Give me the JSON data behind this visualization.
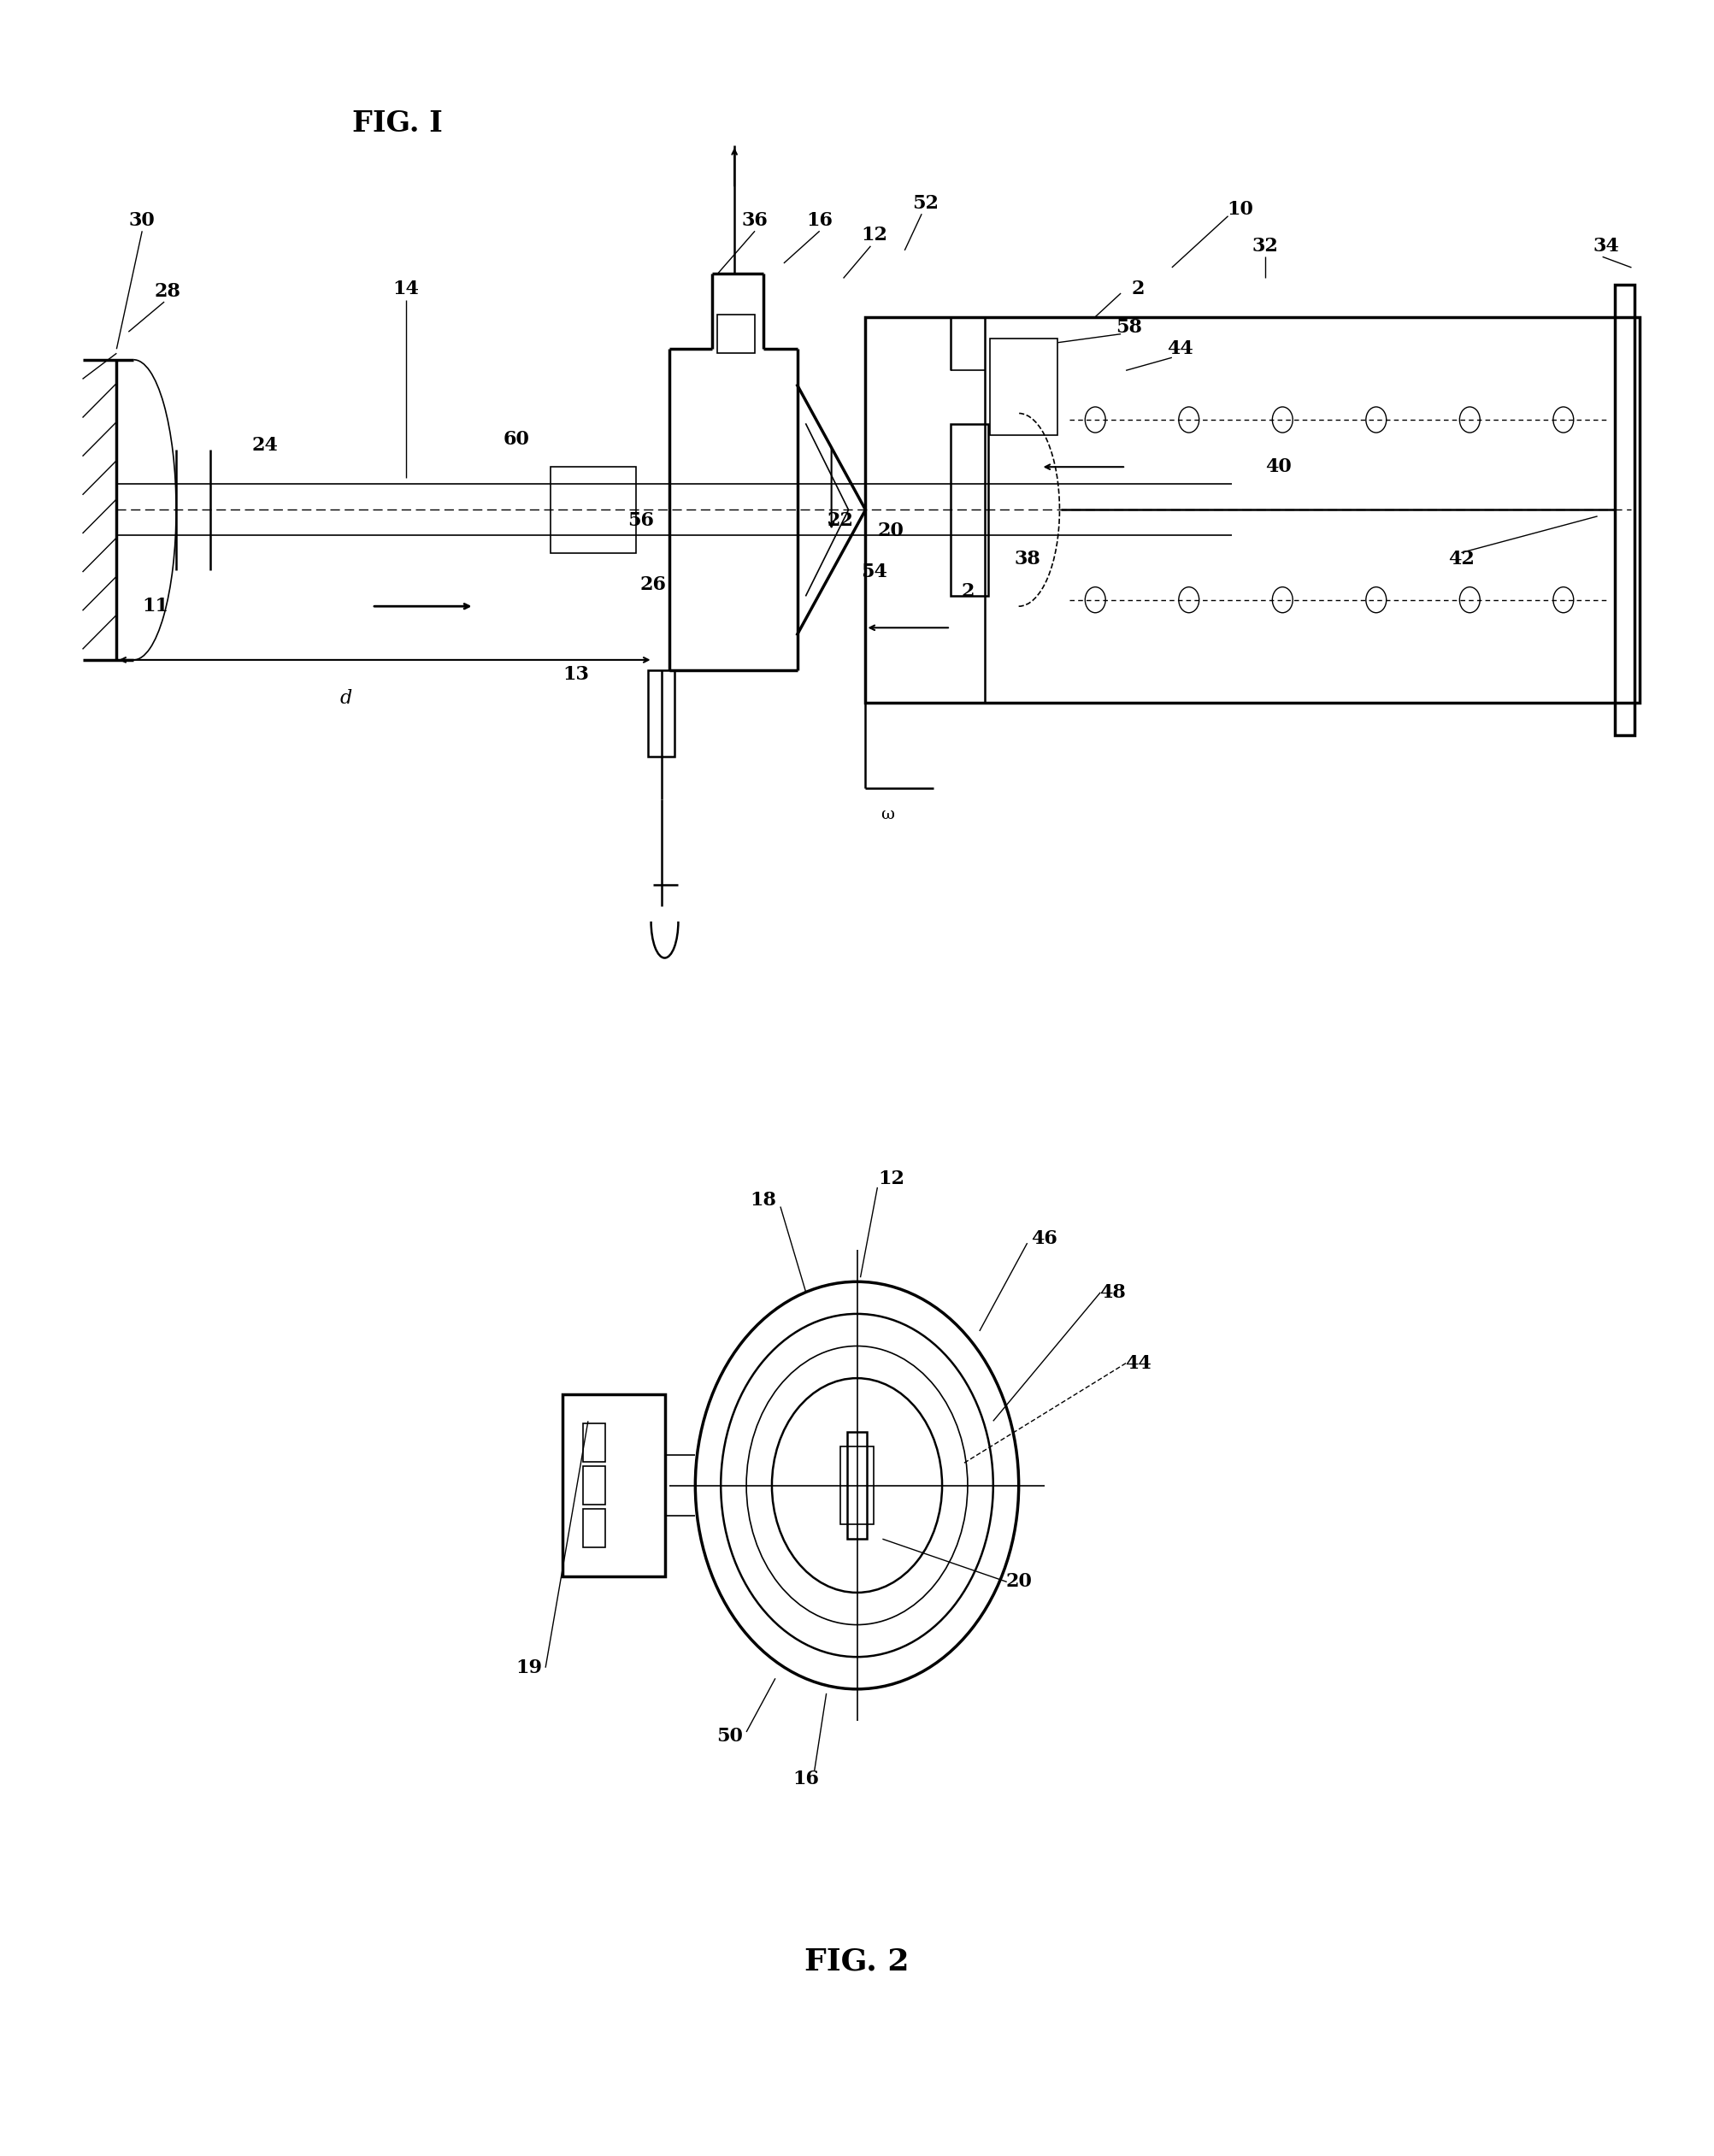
{
  "fig_width": 20.05,
  "fig_height": 25.22,
  "bg_color": "#ffffff",
  "line_color": "#000000",
  "fig1_title": "FIG. I",
  "fig2_title": "FIG. 2",
  "lw_thin": 1.2,
  "lw_med": 1.8,
  "lw_thick": 2.5,
  "font_size_label": 16,
  "font_size_title": 24
}
